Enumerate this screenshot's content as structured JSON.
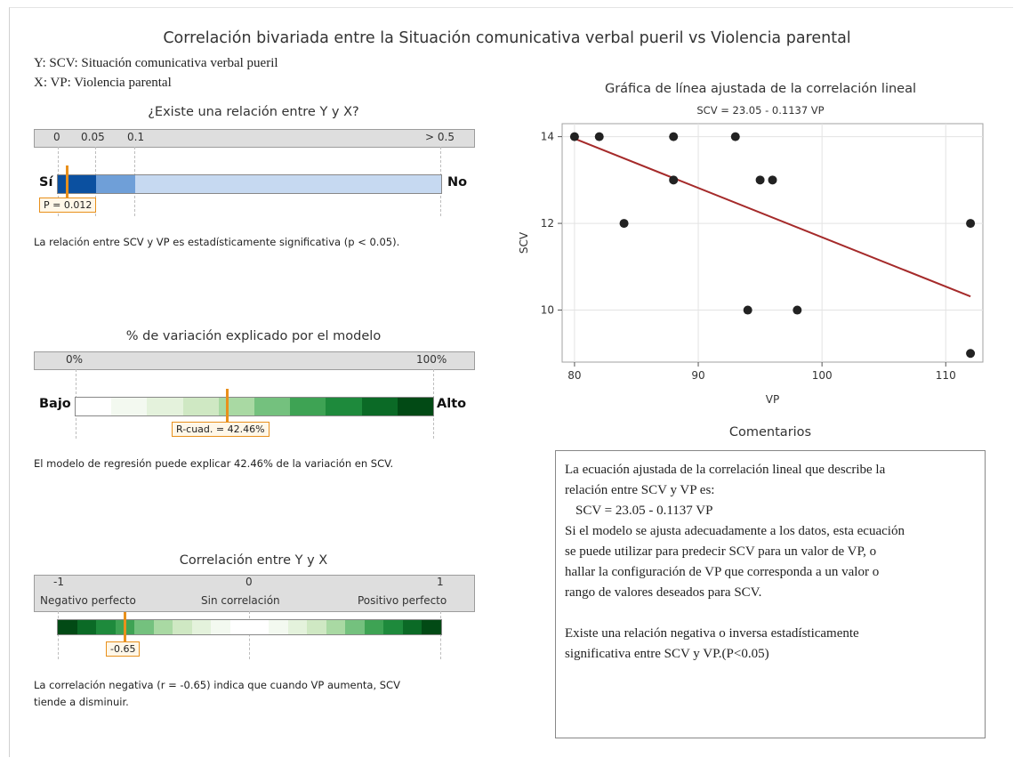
{
  "header": {
    "title": "Correlación bivariada entre la Situación comunicativa verbal pueril vs Violencia parental",
    "y_def": "Y: SCV: Situación comunicativa verbal pueril",
    "x_def": "X: VP: Violencia parental"
  },
  "relation": {
    "title": "¿Existe una relación entre Y y X?",
    "ticks": [
      "0",
      "0.05",
      "0.1",
      "> 0.5"
    ],
    "yes_label": "Sí",
    "no_label": "No",
    "p_label": "P = 0.012",
    "p_value": 0.012,
    "note": "La relación entre SCV y VP es estadísticamente significativa (p < 0.05)."
  },
  "variation": {
    "title": "% de variación explicado por el modelo",
    "ticks": [
      "0%",
      "100%"
    ],
    "low_label": "Bajo",
    "high_label": "Alto",
    "r2_label": "R-cuad. = 42.46%",
    "r2_value": 42.46,
    "segment_colors": [
      "#ffffff",
      "#f3f9f0",
      "#e4f2dc",
      "#cfe8c3",
      "#a9d9a3",
      "#74c17e",
      "#3ea354",
      "#1e8a3c",
      "#0b6a26",
      "#024a15"
    ],
    "note": "El modelo de regresión puede explicar 42.46% de la variación en SCV."
  },
  "correlation": {
    "title": "Correlación entre Y y X",
    "ticks": [
      "-1",
      "0",
      "1"
    ],
    "labels": [
      "Negativo perfecto",
      "Sin correlación",
      "Positivo perfecto"
    ],
    "r_label": "-0.65",
    "r_value": -0.65,
    "segment_colors": [
      "#024a15",
      "#0b6a26",
      "#1e8a3c",
      "#3ea354",
      "#74c17e",
      "#a9d9a3",
      "#cfe8c3",
      "#e4f2dc",
      "#f3f9f0",
      "#ffffff",
      "#ffffff",
      "#f3f9f0",
      "#e4f2dc",
      "#cfe8c3",
      "#a9d9a3",
      "#74c17e",
      "#3ea354",
      "#1e8a3c",
      "#0b6a26",
      "#024a15"
    ],
    "note_line1": "La correlación negativa (r = -0.65) indica que cuando VP aumenta, SCV",
    "note_line2": "tiende a disminuir."
  },
  "chart_data": {
    "type": "scatter",
    "title": "Gráfica de línea ajustada de la correlación lineal",
    "subtitle": "SCV = 23.05 - 0.1137 VP",
    "xlabel": "VP",
    "ylabel": "SCV",
    "xlim": [
      79,
      113
    ],
    "ylim": [
      8.8,
      14.3
    ],
    "x_ticks": [
      80,
      90,
      100,
      110
    ],
    "y_ticks": [
      10,
      12,
      14
    ],
    "grid": true,
    "points": [
      {
        "x": 80,
        "y": 14
      },
      {
        "x": 82,
        "y": 14
      },
      {
        "x": 84,
        "y": 12
      },
      {
        "x": 88,
        "y": 14
      },
      {
        "x": 88,
        "y": 13
      },
      {
        "x": 93,
        "y": 14
      },
      {
        "x": 94,
        "y": 10
      },
      {
        "x": 95,
        "y": 13
      },
      {
        "x": 96,
        "y": 13
      },
      {
        "x": 98,
        "y": 10
      },
      {
        "x": 112,
        "y": 12
      },
      {
        "x": 112,
        "y": 9
      }
    ],
    "fit_line": {
      "intercept": 23.05,
      "slope": -0.1137,
      "x_range": [
        80,
        112
      ],
      "color": "#a52a2a"
    },
    "point_color": "#222222"
  },
  "comments": {
    "title": "Comentarios",
    "lines": [
      "La ecuación ajustada de la correlación lineal que describe la",
      "relación entre SCV y VP es:",
      "SCV = 23.05 - 0.1137 VP",
      "Si el modelo se ajusta adecuadamente a los datos, esta ecuación",
      "se puede utilizar para predecir SCV para un valor de VP, o",
      "hallar la configuración de VP que corresponda a un valor o",
      "rango de valores deseados para SCV.",
      "",
      "Existe una relación negativa o inversa estadísticamente",
      "significativa entre SCV y VP.(P<0.05)"
    ]
  }
}
